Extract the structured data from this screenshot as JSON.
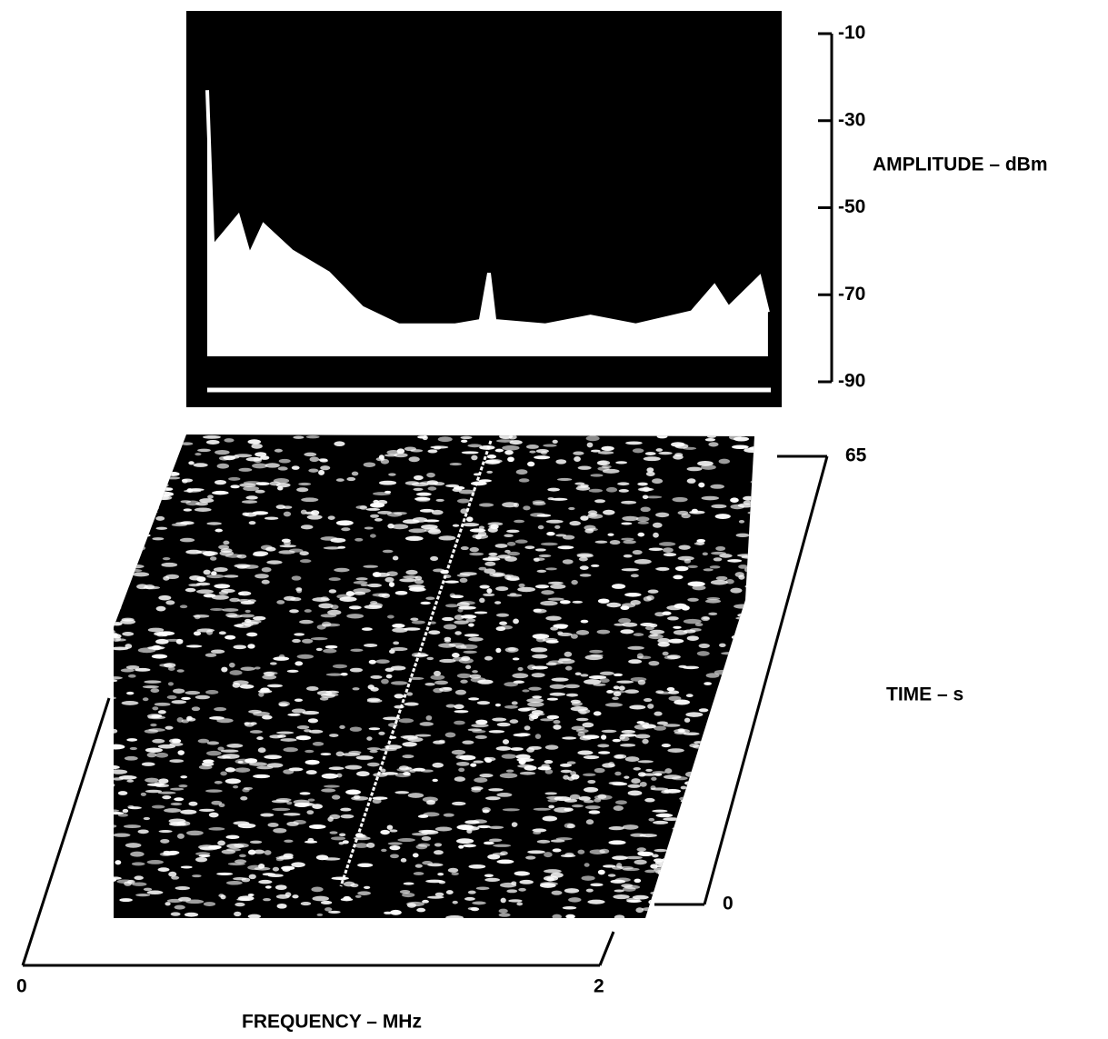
{
  "chart_data": [
    {
      "type": "line",
      "ylabel": "AMPLITUDE – dBm",
      "xlim": [
        0,
        2
      ],
      "ylim": [
        -90,
        -10
      ],
      "yticks": [
        -10,
        -30,
        -50,
        -70,
        -90
      ],
      "x": [
        0,
        0.02,
        0.11,
        0.15,
        0.2,
        0.3,
        0.43,
        0.55,
        0.68,
        0.88,
        0.97,
        1.0,
        1.02,
        1.2,
        1.36,
        1.52,
        1.72,
        1.8,
        1.85,
        1.96,
        1.99
      ],
      "series": [
        {
          "color": "#ffffff",
          "values": [
            -23,
            -59,
            -52,
            -61,
            -54,
            -60,
            -65,
            -73,
            -77,
            -77,
            -76,
            -65,
            -76,
            -77,
            -75,
            -77,
            -74,
            -68,
            -73,
            -66,
            -74
          ]
        }
      ]
    },
    {
      "type": "waterfall",
      "xlabel": "FREQUENCY – MHz",
      "ylabel": "TIME – s",
      "xlim": [
        0,
        2
      ],
      "xticks": [
        0,
        2
      ],
      "ylim": [
        0,
        65
      ],
      "yticks": [
        0,
        65
      ]
    }
  ]
}
